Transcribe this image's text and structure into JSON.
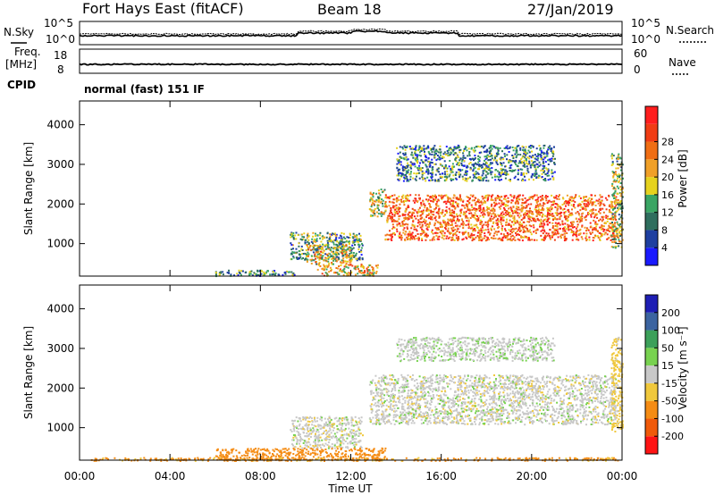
{
  "header": {
    "radar": "Fort Hays East (fitACF)",
    "beam": "Beam 18",
    "date": "27/Jan/2019"
  },
  "top_panels": {
    "nsky_label": "N.Sky",
    "nsearch_label": "N.Search",
    "nsky_ticks": [
      "10^5",
      "10^0"
    ],
    "nsearch_ticks": [
      "10^5",
      "10^0"
    ],
    "freq_label_1": "Freq.",
    "freq_label_2": "[MHz]",
    "freq_ticks": [
      "18",
      "8"
    ],
    "nave_label": "Nave",
    "nave_ticks": [
      "60",
      "0"
    ],
    "cpid_label": "CPID",
    "cpid_value": "normal (fast) 151 IF"
  },
  "colors": {
    "power": [
      "#1a1aff",
      "#1e3fa0",
      "#2f6e5e",
      "#3aa564",
      "#e6d21e",
      "#f0a028",
      "#f06e14",
      "#f03c14",
      "#ff1e1e"
    ],
    "velocity": [
      "#ff1414",
      "#f05a0a",
      "#f58c14",
      "#f0c83c",
      "#c8c8c8",
      "#78d250",
      "#3ca05a",
      "#3c64a0",
      "#1e1eb4"
    ]
  },
  "chart_data": [
    {
      "type": "heatmap",
      "name": "power",
      "xlabel": "Time UT",
      "ylabel": "Slant Range [km]",
      "x_ticks": [
        "00:00",
        "04:00",
        "08:00",
        "12:00",
        "16:00",
        "20:00",
        "00:00"
      ],
      "y_ticks": [
        "1000",
        "2000",
        "3000",
        "4000"
      ],
      "xlim": [
        0,
        24
      ],
      "ylim": [
        180,
        4600
      ],
      "colorbar": {
        "label": "Power [dB]",
        "ticks": [
          "4",
          "8",
          "12",
          "16",
          "20",
          "24",
          "28"
        ],
        "range": [
          0,
          30
        ]
      },
      "regions": [
        {
          "t": [
            9.3,
            12.5
          ],
          "r": [
            600,
            1300
          ],
          "level": 0.35
        },
        {
          "t": [
            10.0,
            12.0
          ],
          "r": [
            500,
            1000
          ],
          "level": 0.55
        },
        {
          "t": [
            10.5,
            13.2
          ],
          "r": [
            200,
            500
          ],
          "level": 0.6
        },
        {
          "t": [
            12.8,
            13.5
          ],
          "r": [
            1700,
            2400
          ],
          "level": 0.5
        },
        {
          "t": [
            13.5,
            23.7
          ],
          "r": [
            1100,
            2250
          ],
          "level": 0.75
        },
        {
          "t": [
            14.0,
            21.0
          ],
          "r": [
            2600,
            3500
          ],
          "level": 0.3
        },
        {
          "t": [
            23.5,
            24.0
          ],
          "r": [
            900,
            3300
          ],
          "level": 0.45
        },
        {
          "t": [
            6.0,
            9.5
          ],
          "r": [
            200,
            350
          ],
          "level": 0.3
        }
      ]
    },
    {
      "type": "heatmap",
      "name": "velocity",
      "xlabel": "Time UT",
      "ylabel": "Slant Range [km]",
      "x_ticks": [
        "00:00",
        "04:00",
        "08:00",
        "12:00",
        "16:00",
        "20:00",
        "00:00"
      ],
      "y_ticks": [
        "1000",
        "2000",
        "3000",
        "4000"
      ],
      "xlim": [
        0,
        24
      ],
      "ylim": [
        180,
        4600
      ],
      "colorbar": {
        "label": "Velocity [m s⁻¹]",
        "ticks": [
          "-200",
          "-100",
          "-50",
          "-15",
          "15",
          "50",
          "100",
          "200"
        ],
        "range": [
          -250,
          250
        ]
      },
      "regions": [
        {
          "t": [
            9.3,
            12.5
          ],
          "r": [
            500,
            1300
          ],
          "vel": 0
        },
        {
          "t": [
            6.0,
            13.5
          ],
          "r": [
            180,
            500
          ],
          "vel": -80
        },
        {
          "t": [
            0.5,
            23.8
          ],
          "r": [
            180,
            260
          ],
          "vel": -60
        },
        {
          "t": [
            12.8,
            23.7
          ],
          "r": [
            1100,
            2350
          ],
          "vel": 0
        },
        {
          "t": [
            14.0,
            21.0
          ],
          "r": [
            2700,
            3300
          ],
          "vel": 5
        },
        {
          "t": [
            23.5,
            24.0
          ],
          "r": [
            900,
            3300
          ],
          "vel": -30
        }
      ]
    }
  ]
}
